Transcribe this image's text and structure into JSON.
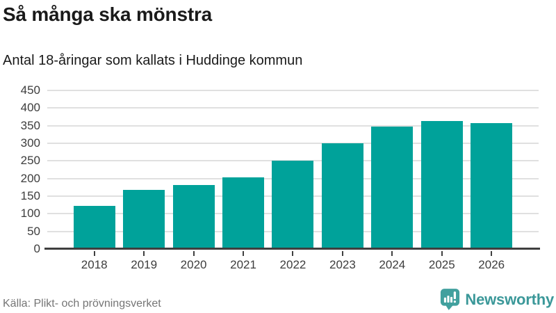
{
  "header": {
    "title": "Så många ska mönstra",
    "subtitle": "Antal 18-åringar som kallats i Huddinge kommun"
  },
  "chart_data": {
    "type": "bar",
    "categories": [
      "2018",
      "2019",
      "2020",
      "2021",
      "2022",
      "2023",
      "2024",
      "2025",
      "2026"
    ],
    "values": [
      122,
      168,
      182,
      203,
      251,
      300,
      347,
      363,
      357
    ],
    "title": "Så många ska mönstra",
    "subtitle": "Antal 18-åringar som kallats i Huddinge kommun",
    "xlabel": "",
    "ylabel": "",
    "ylim": [
      0,
      450
    ],
    "ytick_step": 50,
    "grid": true,
    "legend": "none",
    "bar_color": "#00a29a"
  },
  "footer": {
    "source": "Källa: Plikt- och prövningsverket",
    "brand": "Newsworthy"
  },
  "colors": {
    "bar": "#00a29a",
    "grid": "#e0e0e0",
    "axis": "#3f3f3f",
    "tick_label": "#3d3d3d",
    "source_text": "#757575",
    "brand_teal": "#3b9899",
    "logo_icon_teal": "#41a09e"
  },
  "icons": {
    "logo": "newsworthy-bar-chart-bubble-icon"
  }
}
